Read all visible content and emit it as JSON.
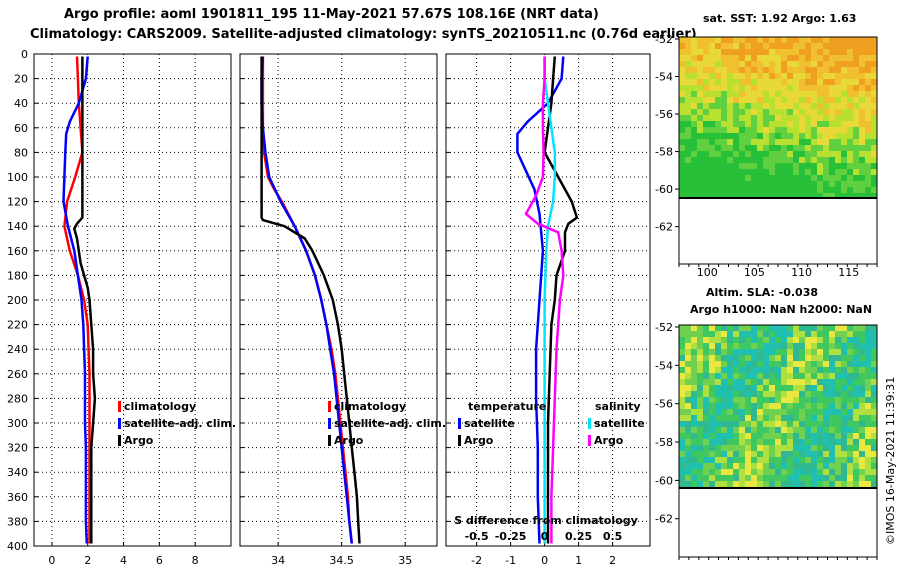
{
  "header": {
    "line1": "Argo profile: aoml 1901811_195 11-May-2021 57.67S 108.16E (NRT data)",
    "line2": "Climatology: CARS2009. Satellite-adjusted climatology: synTS_20210511.nc (0.76d earlier)"
  },
  "colors": {
    "climatology": "#ff0000",
    "satellite": "#0000ff",
    "argo": "#000000",
    "sat_salinity": "#00e5ff",
    "argo_salinity": "#ff00ff",
    "land_mask": "#ffffff"
  },
  "depth_ticks": [
    "0",
    "20",
    "40",
    "60",
    "80",
    "100",
    "120",
    "140",
    "160",
    "180",
    "200",
    "220",
    "240",
    "260",
    "280",
    "300",
    "320",
    "340",
    "360",
    "380",
    "400"
  ],
  "chart_data": [
    {
      "type": "line",
      "panel": "temperature",
      "xlim": [
        -1,
        10
      ],
      "ylim": [
        400,
        0
      ],
      "xticks": [
        "0",
        "2",
        "4",
        "6",
        "8"
      ],
      "xtick_values": [
        0,
        2,
        4,
        6,
        8
      ],
      "yticks": [
        0,
        20,
        40,
        60,
        80,
        100,
        120,
        140,
        160,
        180,
        200,
        220,
        240,
        260,
        280,
        300,
        320,
        340,
        360,
        380,
        400
      ],
      "legend": [
        "climatology",
        "satellite-adj. clim.",
        "Argo"
      ],
      "series": [
        {
          "name": "climatology",
          "color": "#ff0000",
          "depth": [
            2,
            20,
            40,
            60,
            80,
            100,
            120,
            140,
            160,
            180,
            200,
            220,
            240,
            260,
            280,
            300,
            320,
            340,
            360,
            380,
            398
          ],
          "values": [
            1.4,
            1.45,
            1.5,
            1.6,
            1.7,
            1.3,
            0.85,
            0.7,
            1.0,
            1.45,
            1.8,
            2.0,
            2.05,
            2.1,
            2.1,
            2.1,
            2.1,
            2.1,
            2.1,
            2.1,
            2.1
          ]
        },
        {
          "name": "satellite-adj. clim.",
          "color": "#0000ff",
          "depth": [
            2,
            20,
            40,
            55,
            65,
            80,
            100,
            120,
            140,
            160,
            180,
            200,
            220,
            240,
            260,
            280,
            300,
            320,
            340,
            360,
            380,
            398
          ],
          "values": [
            2.0,
            1.9,
            1.5,
            1.0,
            0.8,
            0.75,
            0.7,
            0.65,
            0.9,
            1.25,
            1.45,
            1.65,
            1.75,
            1.8,
            1.85,
            1.85,
            1.85,
            1.9,
            1.9,
            1.9,
            1.9,
            1.95
          ]
        },
        {
          "name": "Argo",
          "color": "#000000",
          "depth": [
            2,
            20,
            40,
            60,
            80,
            100,
            120,
            133,
            138,
            142,
            150,
            160,
            170,
            180,
            190,
            200,
            220,
            240,
            260,
            280,
            300,
            320,
            340,
            360,
            380,
            398
          ],
          "values": [
            1.7,
            1.7,
            1.7,
            1.7,
            1.7,
            1.7,
            1.7,
            1.7,
            1.4,
            1.25,
            1.4,
            1.5,
            1.6,
            1.8,
            2.0,
            2.1,
            2.2,
            2.3,
            2.3,
            2.4,
            2.3,
            2.2,
            2.2,
            2.2,
            2.2,
            2.2
          ]
        }
      ]
    },
    {
      "type": "line",
      "panel": "salinity",
      "xlim": [
        33.7,
        35.25
      ],
      "ylim": [
        400,
        0
      ],
      "xticks": [
        "34",
        "34.5",
        "35"
      ],
      "xtick_values": [
        34,
        34.5,
        35
      ],
      "legend": [
        "climatology",
        "satellite-adj. clim.",
        "Argo"
      ],
      "series": [
        {
          "name": "climatology",
          "color": "#ff0000",
          "depth": [
            2,
            20,
            40,
            60,
            80,
            100,
            110,
            120,
            140,
            160,
            180,
            200,
            220,
            240,
            260,
            280,
            300,
            320,
            340,
            360,
            380,
            398
          ],
          "values": [
            33.88,
            33.88,
            33.88,
            33.88,
            33.89,
            33.92,
            33.97,
            34.03,
            34.13,
            34.22,
            34.29,
            34.34,
            34.38,
            34.42,
            34.45,
            34.47,
            34.49,
            34.51,
            34.53,
            34.55,
            34.56,
            34.58
          ]
        },
        {
          "name": "satellite-adj. clim.",
          "color": "#0000ff",
          "depth": [
            2,
            20,
            40,
            60,
            80,
            100,
            120,
            140,
            160,
            180,
            200,
            220,
            240,
            260,
            280,
            300,
            320,
            340,
            360,
            380,
            398
          ],
          "values": [
            33.88,
            33.87,
            33.87,
            33.88,
            33.9,
            33.93,
            34.02,
            34.13,
            34.22,
            34.29,
            34.34,
            34.38,
            34.41,
            34.44,
            34.46,
            34.48,
            34.5,
            34.52,
            34.54,
            34.56,
            34.58
          ]
        },
        {
          "name": "Argo",
          "color": "#000000",
          "depth": [
            2,
            20,
            40,
            60,
            80,
            100,
            120,
            133,
            135,
            140,
            150,
            160,
            180,
            200,
            220,
            240,
            260,
            280,
            300,
            320,
            340,
            360,
            380,
            398
          ],
          "values": [
            33.87,
            33.87,
            33.87,
            33.87,
            33.87,
            33.87,
            33.87,
            33.87,
            33.88,
            34.05,
            34.21,
            34.27,
            34.36,
            34.43,
            34.47,
            34.5,
            34.52,
            34.54,
            34.56,
            34.58,
            34.6,
            34.62,
            34.63,
            34.64
          ]
        }
      ]
    },
    {
      "type": "line",
      "panel": "difference",
      "xlim": [
        -2.9,
        3.1
      ],
      "ylim": [
        400,
        0
      ],
      "xticks": [
        "-2",
        "-1",
        "0",
        "1",
        "2"
      ],
      "xtick_values": [
        -2,
        -1,
        0,
        1,
        2
      ],
      "secondary_label": "S difference from climatology",
      "secondary_ticks": [
        "-0.5",
        "-0.25",
        "0",
        "0.25",
        "0.5"
      ],
      "secondary_tick_values": [
        -0.5,
        -0.25,
        0,
        0.25,
        0.5
      ],
      "legend": {
        "temperature": [
          "satellite",
          "Argo"
        ],
        "salinity": [
          "satellite",
          "Argo"
        ],
        "temperature_title": "temperature",
        "salinity_title": "salinity"
      },
      "series": [
        {
          "name": "temperature satellite",
          "color": "#0000ff",
          "depth": [
            2,
            20,
            40,
            55,
            65,
            80,
            95,
            110,
            130,
            145,
            160,
            180,
            200,
            240,
            280,
            320,
            360,
            398
          ],
          "values": [
            0.55,
            0.5,
            0.1,
            -0.5,
            -0.8,
            -0.8,
            -0.55,
            -0.3,
            -0.15,
            -0.1,
            -0.05,
            -0.1,
            -0.15,
            -0.25,
            -0.25,
            -0.2,
            -0.2,
            -0.15
          ]
        },
        {
          "name": "temperature Argo",
          "color": "#000000",
          "depth": [
            2,
            20,
            40,
            60,
            80,
            100,
            120,
            133,
            138,
            145,
            160,
            180,
            200,
            220,
            260,
            300,
            340,
            380,
            398
          ],
          "values": [
            0.3,
            0.25,
            0.2,
            0.1,
            0.0,
            0.4,
            0.8,
            0.95,
            0.7,
            0.6,
            0.6,
            0.35,
            0.3,
            0.2,
            0.15,
            0.1,
            0.1,
            0.1,
            0.1
          ]
        },
        {
          "name": "salinity satellite",
          "color": "#00e5ff",
          "depth": [
            2,
            20,
            40,
            60,
            80,
            100,
            120,
            140,
            160,
            200,
            260,
            320,
            398
          ],
          "values": [
            0.0,
            0.0,
            0.1,
            0.2,
            0.3,
            0.3,
            0.25,
            0.1,
            0.05,
            0.0,
            0.0,
            0.0,
            0.0
          ]
        },
        {
          "name": "salinity Argo",
          "color": "#ff00ff",
          "depth": [
            2,
            20,
            40,
            60,
            80,
            100,
            115,
            125,
            130,
            138,
            145,
            160,
            180,
            200,
            240,
            280,
            320,
            360,
            398
          ],
          "values": [
            0.0,
            0.0,
            -0.05,
            -0.05,
            -0.03,
            -0.05,
            -0.25,
            -0.45,
            -0.55,
            -0.2,
            0.4,
            0.5,
            0.55,
            0.45,
            0.35,
            0.3,
            0.25,
            0.2,
            0.2
          ]
        }
      ]
    }
  ],
  "sst_map": {
    "title": "sat. SST: 1.92 Argo: 1.63",
    "xticks": [
      "100",
      "105",
      "110",
      "115"
    ],
    "yticks": [
      "-52",
      "-54",
      "-56",
      "-58",
      "-60",
      "-62"
    ],
    "lon_range": [
      97,
      118
    ],
    "lat_range": [
      -52,
      -63.5
    ],
    "data_bottom_lat": -60
  },
  "sla_map": {
    "title_line1": "Altim. SLA: -0.038",
    "title_line2": "Argo h1000: NaN h2000: NaN",
    "yticks": [
      "-52",
      "-54",
      "-56",
      "-58",
      "-60",
      "-62"
    ],
    "data_bottom_lat": -60
  },
  "credit": "©IMOS 16-May-2021 11:39:31"
}
